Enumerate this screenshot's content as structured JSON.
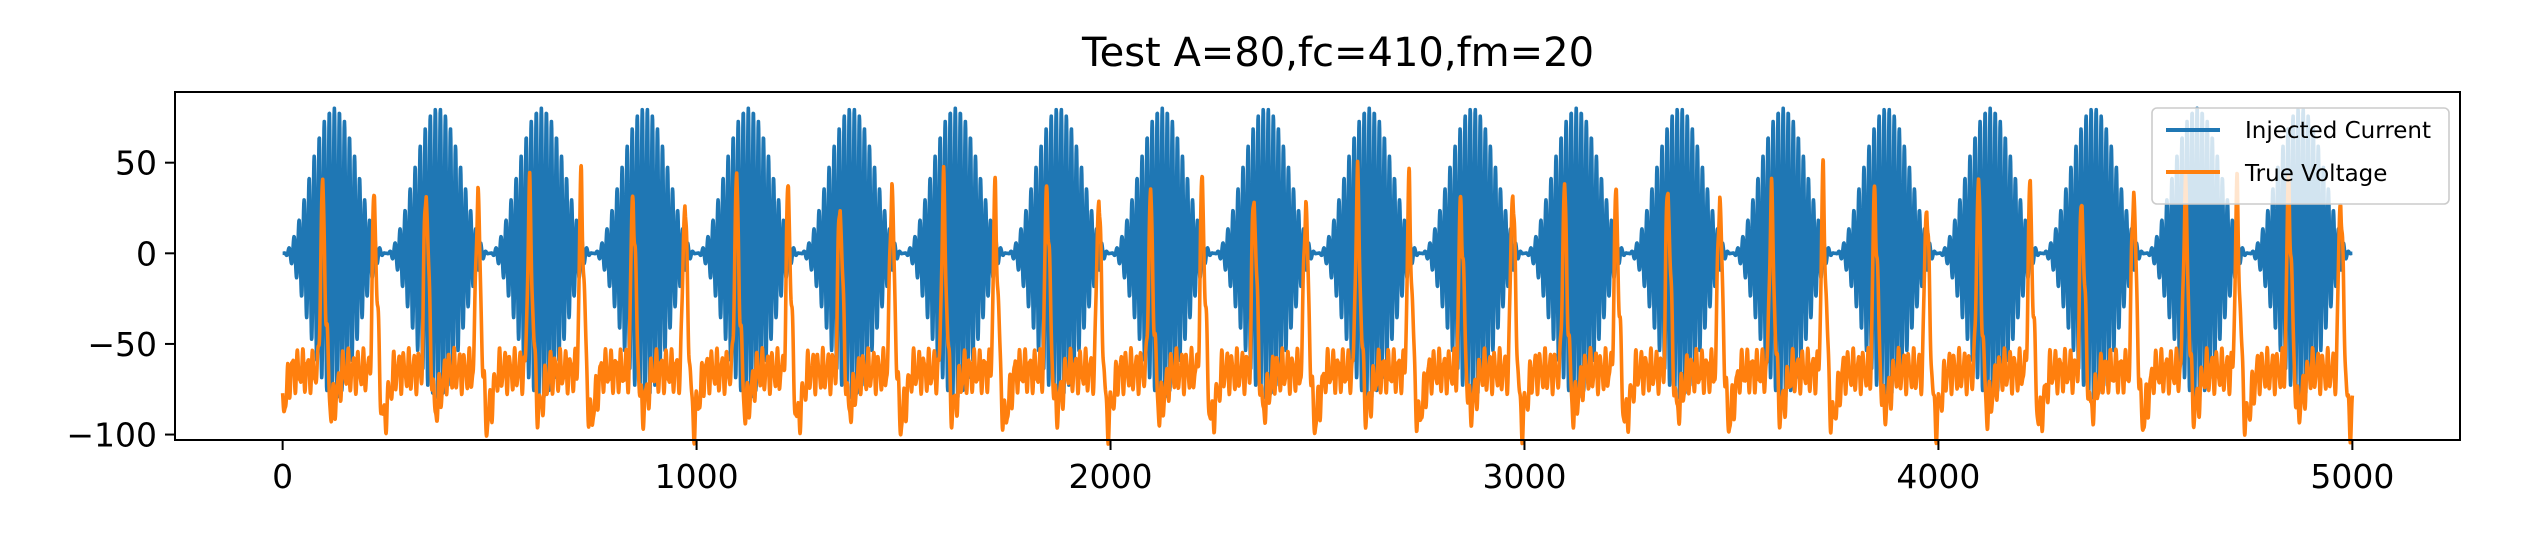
{
  "chart_data": {
    "type": "line",
    "title": "Test A=80,fc=410,fm=20",
    "xlabel": "",
    "ylabel": "",
    "xlim": [
      -260,
      5260
    ],
    "ylim": [
      -103,
      89
    ],
    "x_ticks": [
      0,
      1000,
      2000,
      3000,
      4000,
      5000
    ],
    "y_ticks": [
      50,
      0,
      -50,
      -100
    ],
    "grid": false,
    "legend": {
      "placement": "top-right",
      "entries": [
        "Injected Current",
        "True Voltage"
      ]
    },
    "series": [
      {
        "name": "Injected Current",
        "color": "#1f77b4",
        "x_start": 0,
        "x_end": 5000,
        "amplitude": 80,
        "carrier_cycles_per_envelope": 20.5,
        "envelope_period": 250
      },
      {
        "name": "True Voltage",
        "color": "#ff7f0e",
        "x_start": 0,
        "x_end": 5000,
        "resting_level": -65,
        "peak_level": 40,
        "trough_level": -93,
        "spike_period": 125
      }
    ]
  }
}
